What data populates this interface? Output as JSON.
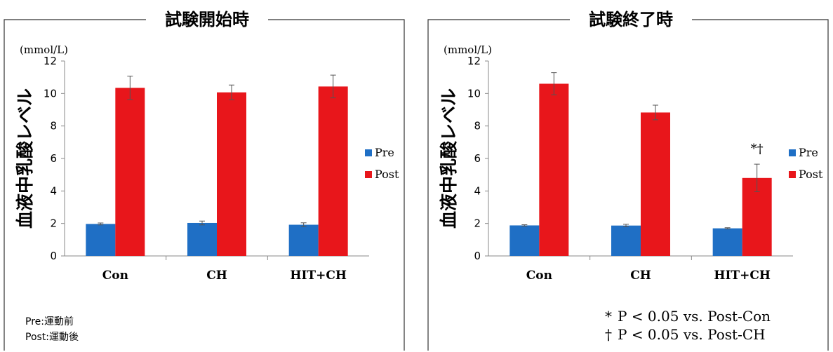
{
  "chart_data": [
    {
      "type": "bar",
      "title": "試験開始時",
      "unit": "(mmol/L)",
      "ylabel": "血液中乳酸レベル",
      "xlabel": "",
      "categories": [
        "Con",
        "CH",
        "HIT+CH"
      ],
      "ylim": [
        0,
        12
      ],
      "yticks": [
        "0",
        "2",
        "4",
        "6",
        "8",
        "10",
        "12"
      ],
      "grid": false,
      "legend_position": "right",
      "series": [
        {
          "name": "Pre",
          "color": "#1f6fc5",
          "values": [
            1.97,
            2.03,
            1.92
          ],
          "errors": [
            0.06,
            0.12,
            0.12
          ]
        },
        {
          "name": "Post",
          "color": "#e8161b",
          "values": [
            10.35,
            10.07,
            10.43
          ],
          "errors": [
            0.72,
            0.45,
            0.7
          ]
        }
      ],
      "annotations": [],
      "footnotes": [
        "Pre:運動前",
        "Post:運動後"
      ]
    },
    {
      "type": "bar",
      "title": "試験終了時",
      "unit": "(mmol/L)",
      "ylabel": "血液中乳酸レベル",
      "xlabel": "",
      "categories": [
        "Con",
        "CH",
        "HIT+CH"
      ],
      "ylim": [
        0,
        12
      ],
      "yticks": [
        "0",
        "2",
        "4",
        "6",
        "8",
        "10",
        "12"
      ],
      "grid": false,
      "legend_position": "right",
      "series": [
        {
          "name": "Pre",
          "color": "#1f6fc5",
          "values": [
            1.88,
            1.87,
            1.7
          ],
          "errors": [
            0.04,
            0.08,
            0.04
          ]
        },
        {
          "name": "Post",
          "color": "#e8161b",
          "values": [
            10.6,
            8.83,
            4.8
          ],
          "errors": [
            0.68,
            0.45,
            0.85
          ]
        }
      ],
      "annotations": [
        {
          "text": "*†",
          "category": "HIT+CH",
          "series": "Post"
        }
      ],
      "footnotes": [
        {
          "symbol": "*",
          "text": "P < 0.05 vs. Post-Con"
        },
        {
          "symbol": "†",
          "text": "P < 0.05 vs. Post-CH"
        }
      ]
    }
  ]
}
